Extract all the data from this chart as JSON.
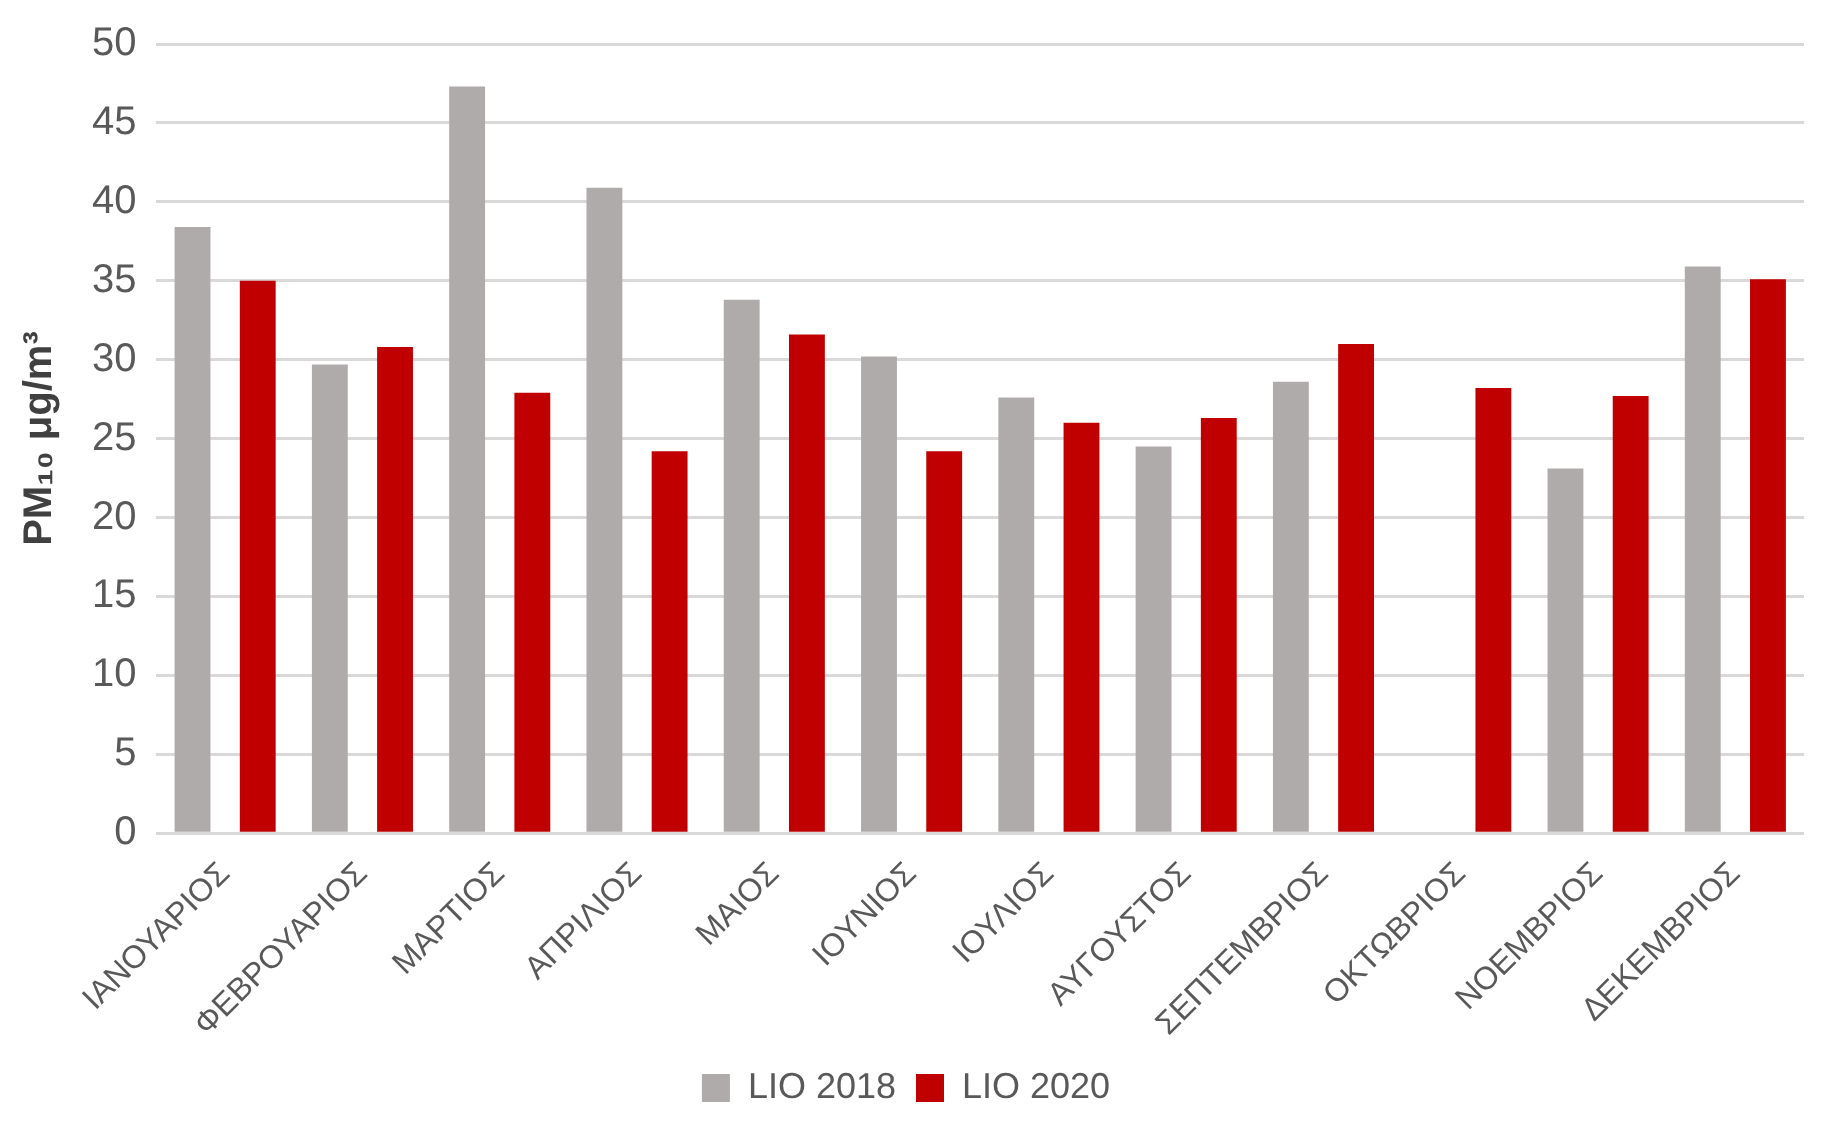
{
  "chart_data": {
    "type": "bar",
    "ylabel": "PM₁₀ μg/m³",
    "categories": [
      "ΙΑΝΟΥΑΡΙΟΣ",
      "ΦΕΒΡΟΥΑΡΙΟΣ",
      "ΜΑΡΤΙΟΣ",
      "ΑΠΡΙΛΙΟΣ",
      "ΜΑΙΟΣ",
      "ΙΟΥΝΙΟΣ",
      "ΙΟΥΛΙΟΣ",
      "ΑΥΓΟΥΣΤΟΣ",
      "ΣΕΠΤΕΜΒΡΙΟΣ",
      "ΟΚΤΩΒΡΙΟΣ",
      "ΝΟΕΜΒΡΙΟΣ",
      "ΔΕΚΕΜΒΡΙΟΣ"
    ],
    "series": [
      {
        "name": "LIO 2018",
        "color": "#afabab",
        "values": [
          38.4,
          29.7,
          47.3,
          40.9,
          33.8,
          30.2,
          27.6,
          24.5,
          28.6,
          null,
          23.1,
          35.9
        ]
      },
      {
        "name": "LIO 2020",
        "color": "#c00000",
        "values": [
          35.0,
          30.8,
          27.9,
          24.2,
          31.6,
          24.2,
          26.0,
          26.3,
          31.0,
          28.2,
          27.7,
          35.1
        ]
      }
    ],
    "ylim": [
      0,
      50
    ],
    "yticks": [
      0,
      5,
      10,
      15,
      20,
      25,
      30,
      35,
      40,
      45,
      50
    ],
    "grid": "y",
    "legend": "bottom"
  }
}
